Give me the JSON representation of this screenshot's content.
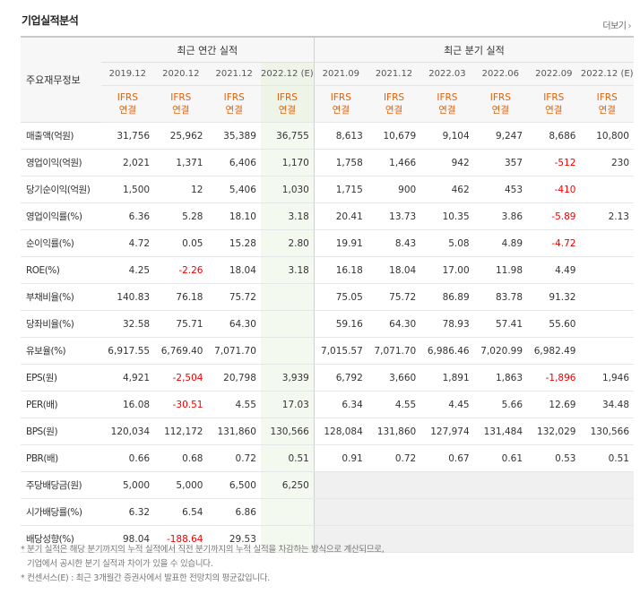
{
  "title": "기업실적분석",
  "more_label": "더보기",
  "header": {
    "label_col": "주요재무정보",
    "group_annual": "최근 연간 실적",
    "group_quarter": "최근 분기 실적",
    "annual_periods": [
      "2019.12",
      "2020.12",
      "2021.12",
      "2022.12 (E)"
    ],
    "quarter_periods": [
      "2021.09",
      "2021.12",
      "2022.03",
      "2022.06",
      "2022.09",
      "2022.12 (E)"
    ],
    "basis_top": "IFRS",
    "basis_bottom": "연결"
  },
  "rows": [
    {
      "label": "매출액(억원)",
      "annual": [
        "31,756",
        "25,962",
        "35,389",
        "36,755"
      ],
      "quarter": [
        "8,613",
        "10,679",
        "9,104",
        "9,247",
        "8,686",
        "10,800"
      ]
    },
    {
      "label": "영업이익(억원)",
      "annual": [
        "2,021",
        "1,371",
        "6,406",
        "1,170"
      ],
      "quarter": [
        "1,758",
        "1,466",
        "942",
        "357",
        "-512",
        "230"
      ]
    },
    {
      "label": "당기순이익(억원)",
      "annual": [
        "1,500",
        "12",
        "5,406",
        "1,030"
      ],
      "quarter": [
        "1,715",
        "900",
        "462",
        "453",
        "-410",
        ""
      ]
    },
    {
      "label": "영업이익률(%)",
      "annual": [
        "6.36",
        "5.28",
        "18.10",
        "3.18"
      ],
      "quarter": [
        "20.41",
        "13.73",
        "10.35",
        "3.86",
        "-5.89",
        "2.13"
      ]
    },
    {
      "label": "순이익률(%)",
      "annual": [
        "4.72",
        "0.05",
        "15.28",
        "2.80"
      ],
      "quarter": [
        "19.91",
        "8.43",
        "5.08",
        "4.89",
        "-4.72",
        ""
      ]
    },
    {
      "label": "ROE(%)",
      "annual": [
        "4.25",
        "-2.26",
        "18.04",
        "3.18"
      ],
      "quarter": [
        "16.18",
        "18.04",
        "17.00",
        "11.98",
        "4.49",
        ""
      ]
    },
    {
      "label": "부채비율(%)",
      "annual": [
        "140.83",
        "76.18",
        "75.72",
        ""
      ],
      "quarter": [
        "75.05",
        "75.72",
        "86.89",
        "83.78",
        "91.32",
        ""
      ]
    },
    {
      "label": "당좌비율(%)",
      "annual": [
        "32.58",
        "75.71",
        "64.30",
        ""
      ],
      "quarter": [
        "59.16",
        "64.30",
        "78.93",
        "57.41",
        "55.60",
        ""
      ]
    },
    {
      "label": "유보율(%)",
      "annual": [
        "6,917.55",
        "6,769.40",
        "7,071.70",
        ""
      ],
      "quarter": [
        "7,015.57",
        "7,071.70",
        "6,986.46",
        "7,020.99",
        "6,982.49",
        ""
      ]
    },
    {
      "label": "EPS(원)",
      "annual": [
        "4,921",
        "-2,504",
        "20,798",
        "3,939"
      ],
      "quarter": [
        "6,792",
        "3,660",
        "1,891",
        "1,863",
        "-1,896",
        "1,946"
      ]
    },
    {
      "label": "PER(배)",
      "annual": [
        "16.08",
        "-30.51",
        "4.55",
        "17.03"
      ],
      "quarter": [
        "6.34",
        "4.55",
        "4.45",
        "5.66",
        "12.69",
        "34.48"
      ]
    },
    {
      "label": "BPS(원)",
      "annual": [
        "120,034",
        "112,172",
        "131,860",
        "130,566"
      ],
      "quarter": [
        "128,084",
        "131,860",
        "127,974",
        "131,484",
        "132,029",
        "130,566"
      ]
    },
    {
      "label": "PBR(배)",
      "annual": [
        "0.66",
        "0.68",
        "0.72",
        "0.51"
      ],
      "quarter": [
        "0.91",
        "0.72",
        "0.67",
        "0.61",
        "0.53",
        "0.51"
      ]
    },
    {
      "label": "주당배당금(원)",
      "annual": [
        "5,000",
        "5,000",
        "6,500",
        "6,250"
      ],
      "quarter": null
    },
    {
      "label": "시가배당률(%)",
      "annual": [
        "6.32",
        "6.54",
        "6.86",
        ""
      ],
      "quarter": null
    },
    {
      "label": "배당성향(%)",
      "annual": [
        "98.04",
        "-188.64",
        "29.53",
        ""
      ],
      "quarter": null
    }
  ],
  "notes": [
    "* 분기 실적은 해당 분기까지의 누적 실적에서 직전 분기까지의 누적 실적을 차감하는 방식으로 계산되므로,",
    "  기업에서 공시한 분기 실적과 차이가 있을 수 있습니다.",
    "* 컨센서스(E) : 최근 3개월간 증권사에서 발표한 전망치의 평균값입니다."
  ],
  "colors": {
    "negative": "#ee0000",
    "basis": "#e0620b",
    "estimate_bg": "#f4f9f0",
    "empty_bg": "#f0f0f0"
  }
}
